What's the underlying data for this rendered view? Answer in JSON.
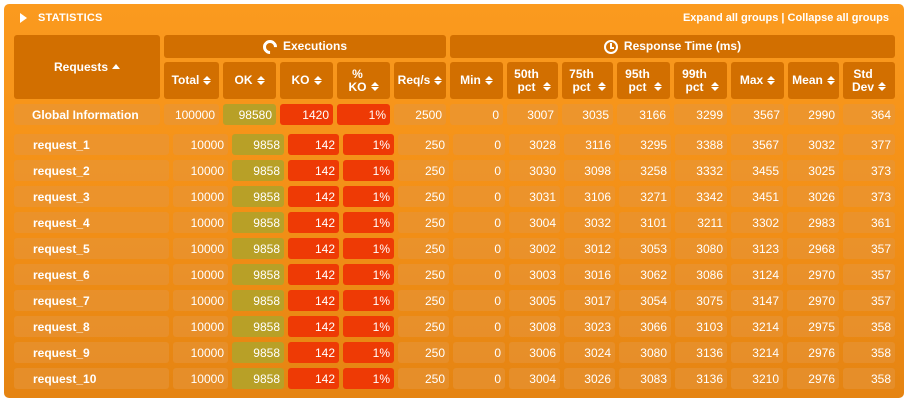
{
  "header": {
    "title": "STATISTICS",
    "expand_label": "Expand all groups",
    "separator": " | ",
    "collapse_label": "Collapse all groups"
  },
  "columns": {
    "requests": "Requests",
    "executions": "Executions",
    "response_time": "Response Time (ms)",
    "total": "Total",
    "ok": "OK",
    "ko": "KO",
    "ko_pct_line1": "%",
    "ko_pct_line2": "KO",
    "req_s": "Req/s",
    "min": "Min",
    "p50_line1": "50th",
    "p75_line1": "75th",
    "p95_line1": "95th",
    "p99_line1": "99th",
    "pct": "pct",
    "max": "Max",
    "mean": "Mean",
    "std_line1": "Std",
    "std_line2": "Dev"
  },
  "global": {
    "name": "Global Information",
    "total": "100000",
    "ok": "98580",
    "ko": "1420",
    "ko_pct": "1%",
    "req_s": "2500",
    "min": "0",
    "p50": "3007",
    "p75": "3035",
    "p95": "3166",
    "p99": "3299",
    "max": "3567",
    "mean": "2990",
    "std": "364"
  },
  "rows": [
    {
      "name": "request_1",
      "total": "10000",
      "ok": "9858",
      "ko": "142",
      "ko_pct": "1%",
      "req_s": "250",
      "min": "0",
      "p50": "3028",
      "p75": "3116",
      "p95": "3295",
      "p99": "3388",
      "max": "3567",
      "mean": "3032",
      "std": "377"
    },
    {
      "name": "request_2",
      "total": "10000",
      "ok": "9858",
      "ko": "142",
      "ko_pct": "1%",
      "req_s": "250",
      "min": "0",
      "p50": "3030",
      "p75": "3098",
      "p95": "3258",
      "p99": "3332",
      "max": "3455",
      "mean": "3025",
      "std": "373"
    },
    {
      "name": "request_3",
      "total": "10000",
      "ok": "9858",
      "ko": "142",
      "ko_pct": "1%",
      "req_s": "250",
      "min": "0",
      "p50": "3031",
      "p75": "3106",
      "p95": "3271",
      "p99": "3342",
      "max": "3451",
      "mean": "3026",
      "std": "373"
    },
    {
      "name": "request_4",
      "total": "10000",
      "ok": "9858",
      "ko": "142",
      "ko_pct": "1%",
      "req_s": "250",
      "min": "0",
      "p50": "3004",
      "p75": "3032",
      "p95": "3101",
      "p99": "3211",
      "max": "3302",
      "mean": "2983",
      "std": "361"
    },
    {
      "name": "request_5",
      "total": "10000",
      "ok": "9858",
      "ko": "142",
      "ko_pct": "1%",
      "req_s": "250",
      "min": "0",
      "p50": "3002",
      "p75": "3012",
      "p95": "3053",
      "p99": "3080",
      "max": "3123",
      "mean": "2968",
      "std": "357"
    },
    {
      "name": "request_6",
      "total": "10000",
      "ok": "9858",
      "ko": "142",
      "ko_pct": "1%",
      "req_s": "250",
      "min": "0",
      "p50": "3003",
      "p75": "3016",
      "p95": "3062",
      "p99": "3086",
      "max": "3124",
      "mean": "2970",
      "std": "357"
    },
    {
      "name": "request_7",
      "total": "10000",
      "ok": "9858",
      "ko": "142",
      "ko_pct": "1%",
      "req_s": "250",
      "min": "0",
      "p50": "3005",
      "p75": "3017",
      "p95": "3054",
      "p99": "3075",
      "max": "3147",
      "mean": "2970",
      "std": "357"
    },
    {
      "name": "request_8",
      "total": "10000",
      "ok": "9858",
      "ko": "142",
      "ko_pct": "1%",
      "req_s": "250",
      "min": "0",
      "p50": "3008",
      "p75": "3023",
      "p95": "3066",
      "p99": "3103",
      "max": "3214",
      "mean": "2975",
      "std": "358"
    },
    {
      "name": "request_9",
      "total": "10000",
      "ok": "9858",
      "ko": "142",
      "ko_pct": "1%",
      "req_s": "250",
      "min": "0",
      "p50": "3006",
      "p75": "3024",
      "p95": "3080",
      "p99": "3136",
      "max": "3214",
      "mean": "2976",
      "std": "358"
    },
    {
      "name": "request_10",
      "total": "10000",
      "ok": "9858",
      "ko": "142",
      "ko_pct": "1%",
      "req_s": "250",
      "min": "0",
      "p50": "3004",
      "p75": "3026",
      "p95": "3083",
      "p99": "3136",
      "max": "3210",
      "mean": "2976",
      "std": "358"
    }
  ],
  "colors": {
    "panel": "#f7941d",
    "header_cell": "#d26f00",
    "ok_cell": "#b8a027",
    "ko_cell": "#ee3a05"
  },
  "icons": {
    "title": "triangle-right-icon",
    "executions": "refresh-icon",
    "response_time": "clock-icon"
  }
}
